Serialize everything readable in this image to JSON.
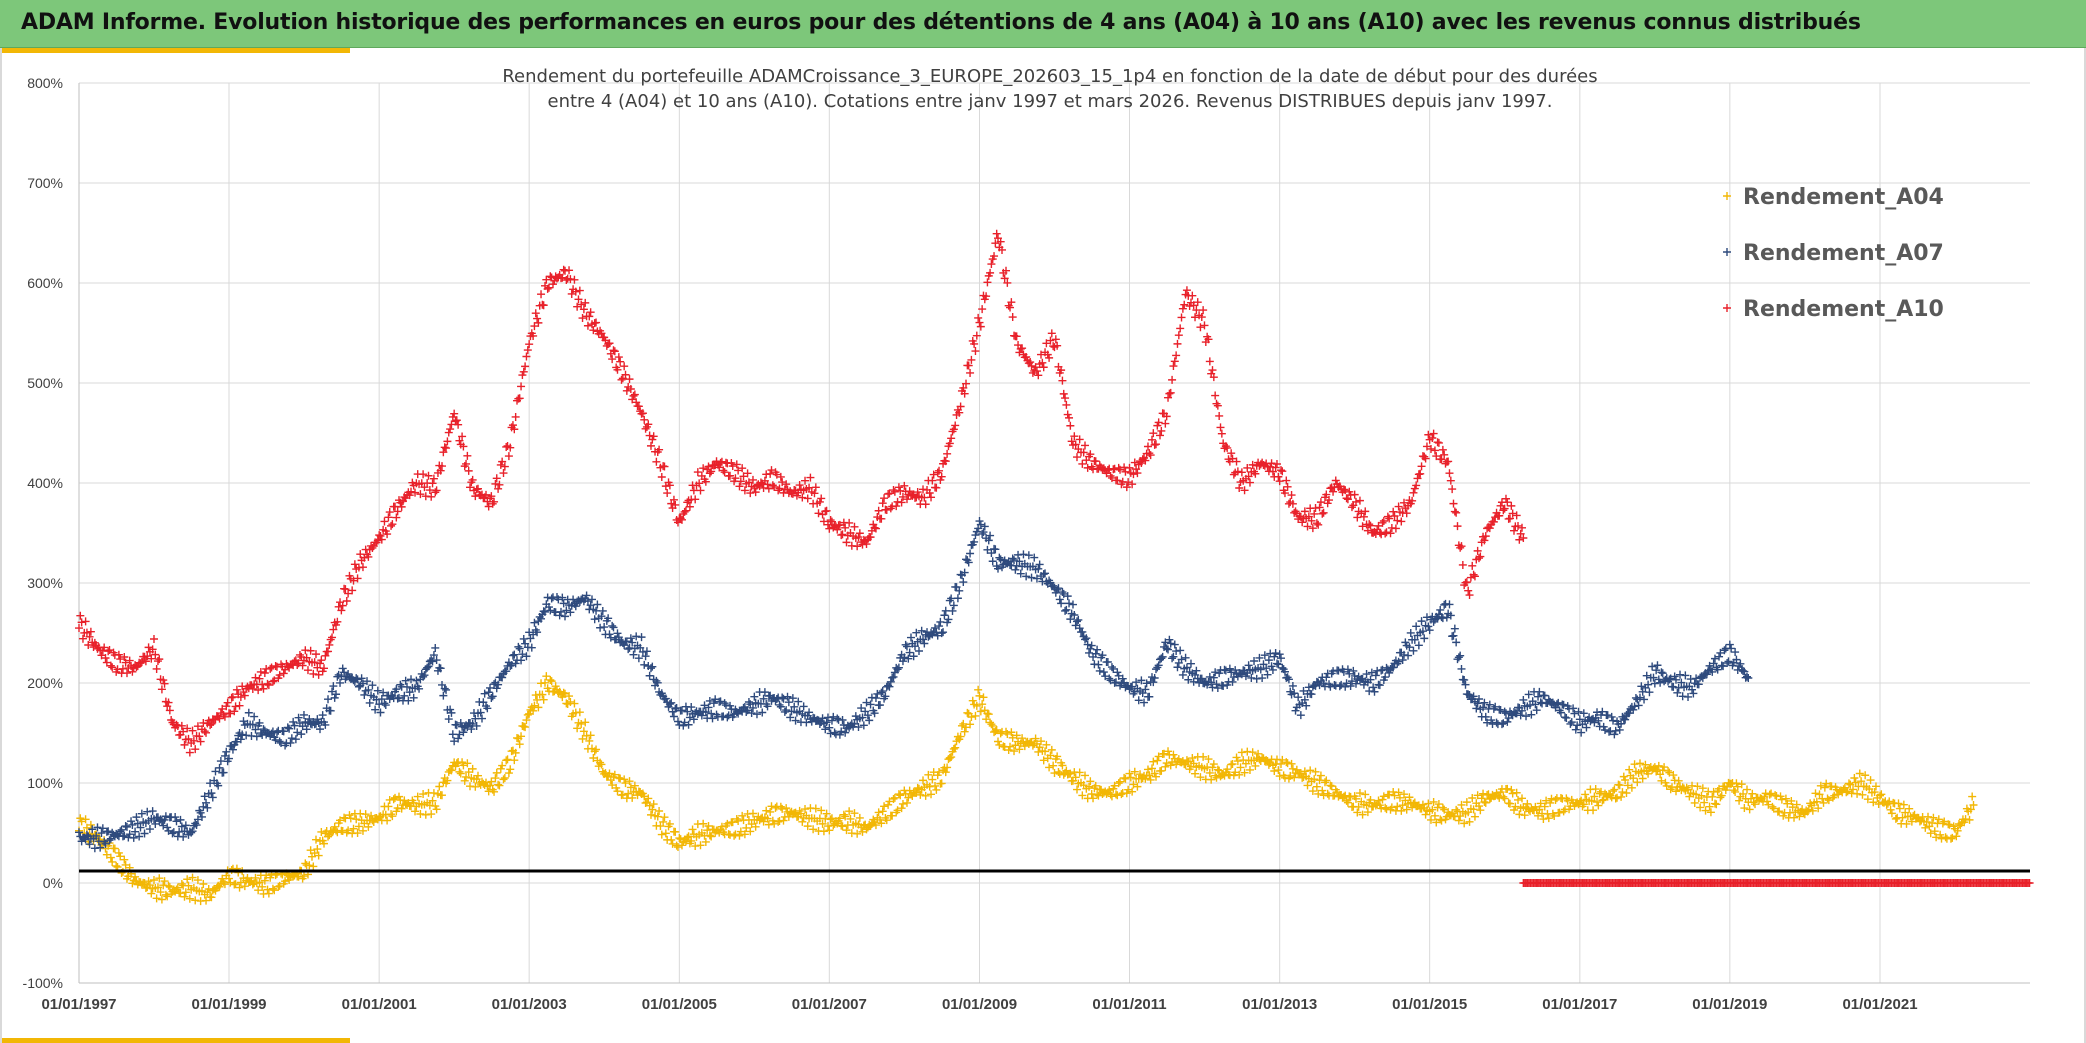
{
  "header": {
    "title": "ADAM Informe. Evolution historique des performances en euros pour des détentions de 4 ans (A04) à 10 ans (A10) avec les revenus connus distribués",
    "background": "#7dc77a",
    "accent": "#f2b705"
  },
  "chart_data": {
    "type": "scatter",
    "marker": "plus",
    "title_lines": [
      "Rendement du portefeuille ADAMCroissance_3_EUROPE_202603_15_1p4  en fonction de la date de début pour des durées",
      "entre 4 (A04) et 10 ans (A10). Cotations entre janv 1997 et mars 2026. Revenus DISTRIBUES depuis janv 1997."
    ],
    "xlabel": "",
    "ylabel": "",
    "x_ticks": [
      "01/01/1997",
      "01/01/1999",
      "01/01/2001",
      "01/01/2003",
      "01/01/2005",
      "01/01/2007",
      "01/01/2009",
      "01/01/2011",
      "01/01/2013",
      "01/01/2015",
      "01/01/2017",
      "01/01/2019",
      "01/01/2021"
    ],
    "xlim": [
      "1997-01-01",
      "2023-01-01"
    ],
    "y_ticks": [
      "-100%",
      "0%",
      "100%",
      "200%",
      "300%",
      "400%",
      "500%",
      "600%",
      "700%",
      "800%"
    ],
    "ylim": [
      -100,
      800
    ],
    "grid": true,
    "legend_position": "top-right",
    "reference_line": {
      "y": 12,
      "color": "#000000"
    },
    "series": [
      {
        "name": "Rendement_A04",
        "color": "#f2b705",
        "points": [
          [
            "1997-01-01",
            58
          ],
          [
            "1997-04-01",
            45
          ],
          [
            "1997-07-01",
            25
          ],
          [
            "1997-10-01",
            2
          ],
          [
            "1998-01-01",
            -5
          ],
          [
            "1998-04-01",
            -8
          ],
          [
            "1998-07-01",
            -5
          ],
          [
            "1998-10-01",
            -12
          ],
          [
            "1999-01-01",
            8
          ],
          [
            "1999-04-01",
            2
          ],
          [
            "1999-07-01",
            -2
          ],
          [
            "1999-10-01",
            5
          ],
          [
            "2000-01-01",
            10
          ],
          [
            "2000-04-01",
            45
          ],
          [
            "2000-07-01",
            58
          ],
          [
            "2000-10-01",
            60
          ],
          [
            "2001-01-01",
            65
          ],
          [
            "2001-04-01",
            80
          ],
          [
            "2001-07-01",
            78
          ],
          [
            "2001-10-01",
            80
          ],
          [
            "2002-01-01",
            120
          ],
          [
            "2002-04-01",
            105
          ],
          [
            "2002-07-01",
            95
          ],
          [
            "2002-10-01",
            120
          ],
          [
            "2003-01-01",
            170
          ],
          [
            "2003-04-01",
            200
          ],
          [
            "2003-07-01",
            185
          ],
          [
            "2003-10-01",
            150
          ],
          [
            "2004-01-01",
            110
          ],
          [
            "2004-04-01",
            95
          ],
          [
            "2004-07-01",
            90
          ],
          [
            "2004-10-01",
            60
          ],
          [
            "2005-01-01",
            40
          ],
          [
            "2005-04-01",
            48
          ],
          [
            "2005-07-01",
            52
          ],
          [
            "2005-10-01",
            55
          ],
          [
            "2006-01-01",
            62
          ],
          [
            "2006-04-01",
            68
          ],
          [
            "2006-07-01",
            70
          ],
          [
            "2006-10-01",
            65
          ],
          [
            "2007-01-01",
            60
          ],
          [
            "2007-04-01",
            62
          ],
          [
            "2007-07-01",
            55
          ],
          [
            "2007-10-01",
            70
          ],
          [
            "2008-01-01",
            85
          ],
          [
            "2008-04-01",
            95
          ],
          [
            "2008-07-01",
            105
          ],
          [
            "2008-10-01",
            150
          ],
          [
            "2009-01-01",
            185
          ],
          [
            "2009-04-01",
            145
          ],
          [
            "2009-07-01",
            140
          ],
          [
            "2009-10-01",
            140
          ],
          [
            "2010-01-01",
            120
          ],
          [
            "2010-04-01",
            105
          ],
          [
            "2010-07-01",
            92
          ],
          [
            "2010-10-01",
            90
          ],
          [
            "2011-01-01",
            100
          ],
          [
            "2011-04-01",
            108
          ],
          [
            "2011-07-01",
            125
          ],
          [
            "2011-10-01",
            120
          ],
          [
            "2012-01-01",
            115
          ],
          [
            "2012-04-01",
            108
          ],
          [
            "2012-07-01",
            120
          ],
          [
            "2012-10-01",
            125
          ],
          [
            "2013-01-01",
            115
          ],
          [
            "2013-04-01",
            110
          ],
          [
            "2013-07-01",
            100
          ],
          [
            "2013-10-01",
            90
          ],
          [
            "2014-01-01",
            80
          ],
          [
            "2014-04-01",
            78
          ],
          [
            "2014-07-01",
            82
          ],
          [
            "2014-10-01",
            80
          ],
          [
            "2015-01-01",
            72
          ],
          [
            "2015-04-01",
            68
          ],
          [
            "2015-07-01",
            70
          ],
          [
            "2015-10-01",
            85
          ],
          [
            "2016-01-01",
            90
          ],
          [
            "2016-04-01",
            75
          ],
          [
            "2016-07-01",
            72
          ],
          [
            "2016-10-01",
            78
          ],
          [
            "2017-01-01",
            80
          ],
          [
            "2017-04-01",
            85
          ],
          [
            "2017-07-01",
            90
          ],
          [
            "2017-10-01",
            110
          ],
          [
            "2018-01-01",
            115
          ],
          [
            "2018-04-01",
            100
          ],
          [
            "2018-07-01",
            90
          ],
          [
            "2018-10-01",
            80
          ],
          [
            "2019-01-01",
            100
          ],
          [
            "2019-04-01",
            82
          ],
          [
            "2019-07-01",
            85
          ],
          [
            "2019-10-01",
            75
          ],
          [
            "2020-01-01",
            70
          ],
          [
            "2020-04-01",
            90
          ],
          [
            "2020-07-01",
            92
          ],
          [
            "2020-10-01",
            100
          ],
          [
            "2021-01-01",
            85
          ],
          [
            "2021-04-01",
            70
          ],
          [
            "2021-07-01",
            65
          ],
          [
            "2021-10-01",
            55
          ],
          [
            "2022-01-01",
            50
          ],
          [
            "2022-04-01",
            78
          ]
        ]
      },
      {
        "name": "Rendement_A07",
        "color": "#2e4a7d",
        "points": [
          [
            "1997-01-01",
            45
          ],
          [
            "1997-04-01",
            45
          ],
          [
            "1997-07-01",
            48
          ],
          [
            "1997-10-01",
            55
          ],
          [
            "1998-01-01",
            65
          ],
          [
            "1998-04-01",
            58
          ],
          [
            "1998-07-01",
            50
          ],
          [
            "1998-10-01",
            90
          ],
          [
            "1999-01-01",
            130
          ],
          [
            "1999-04-01",
            160
          ],
          [
            "1999-07-01",
            150
          ],
          [
            "1999-10-01",
            145
          ],
          [
            "2000-01-01",
            160
          ],
          [
            "2000-04-01",
            160
          ],
          [
            "2000-07-01",
            210
          ],
          [
            "2000-10-01",
            200
          ],
          [
            "2001-01-01",
            180
          ],
          [
            "2001-04-01",
            190
          ],
          [
            "2001-07-01",
            195
          ],
          [
            "2001-10-01",
            230
          ],
          [
            "2002-01-01",
            150
          ],
          [
            "2002-04-01",
            160
          ],
          [
            "2002-07-01",
            190
          ],
          [
            "2002-10-01",
            220
          ],
          [
            "2003-01-01",
            240
          ],
          [
            "2003-04-01",
            280
          ],
          [
            "2003-07-01",
            275
          ],
          [
            "2003-10-01",
            285
          ],
          [
            "2004-01-01",
            260
          ],
          [
            "2004-04-01",
            240
          ],
          [
            "2004-07-01",
            235
          ],
          [
            "2004-10-01",
            190
          ],
          [
            "2005-01-01",
            165
          ],
          [
            "2005-04-01",
            170
          ],
          [
            "2005-07-01",
            175
          ],
          [
            "2005-10-01",
            170
          ],
          [
            "2006-01-01",
            178
          ],
          [
            "2006-04-01",
            185
          ],
          [
            "2006-07-01",
            175
          ],
          [
            "2006-10-01",
            165
          ],
          [
            "2007-01-01",
            158
          ],
          [
            "2007-04-01",
            155
          ],
          [
            "2007-07-01",
            170
          ],
          [
            "2007-10-01",
            190
          ],
          [
            "2008-01-01",
            230
          ],
          [
            "2008-04-01",
            245
          ],
          [
            "2008-07-01",
            255
          ],
          [
            "2008-10-01",
            300
          ],
          [
            "2009-01-01",
            360
          ],
          [
            "2009-04-01",
            320
          ],
          [
            "2009-07-01",
            320
          ],
          [
            "2009-10-01",
            315
          ],
          [
            "2010-01-01",
            295
          ],
          [
            "2010-04-01",
            270
          ],
          [
            "2010-07-01",
            230
          ],
          [
            "2010-10-01",
            210
          ],
          [
            "2011-01-01",
            195
          ],
          [
            "2011-04-01",
            190
          ],
          [
            "2011-07-01",
            240
          ],
          [
            "2011-10-01",
            215
          ],
          [
            "2012-01-01",
            200
          ],
          [
            "2012-04-01",
            205
          ],
          [
            "2012-07-01",
            210
          ],
          [
            "2012-10-01",
            215
          ],
          [
            "2013-01-01",
            225
          ],
          [
            "2013-04-01",
            175
          ],
          [
            "2013-07-01",
            200
          ],
          [
            "2013-10-01",
            205
          ],
          [
            "2014-01-01",
            205
          ],
          [
            "2014-04-01",
            200
          ],
          [
            "2014-07-01",
            215
          ],
          [
            "2014-10-01",
            240
          ],
          [
            "2015-01-01",
            260
          ],
          [
            "2015-04-01",
            275
          ],
          [
            "2015-07-01",
            190
          ],
          [
            "2015-10-01",
            170
          ],
          [
            "2016-01-01",
            165
          ],
          [
            "2016-04-01",
            175
          ],
          [
            "2016-07-01",
            185
          ],
          [
            "2016-10-01",
            175
          ],
          [
            "2017-01-01",
            160
          ],
          [
            "2017-04-01",
            165
          ],
          [
            "2017-07-01",
            155
          ],
          [
            "2017-10-01",
            180
          ],
          [
            "2018-01-01",
            210
          ],
          [
            "2018-04-01",
            200
          ],
          [
            "2018-07-01",
            195
          ],
          [
            "2018-10-01",
            215
          ],
          [
            "2019-01-01",
            230
          ],
          [
            "2019-04-01",
            205
          ]
        ]
      },
      {
        "name": "Rendement_A10",
        "color": "#e8212a",
        "points": [
          [
            "1997-01-01",
            260
          ],
          [
            "1997-04-01",
            235
          ],
          [
            "1997-07-01",
            220
          ],
          [
            "1997-10-01",
            215
          ],
          [
            "1998-01-01",
            235
          ],
          [
            "1998-04-01",
            160
          ],
          [
            "1998-07-01",
            140
          ],
          [
            "1998-10-01",
            160
          ],
          [
            "1999-01-01",
            175
          ],
          [
            "1999-04-01",
            195
          ],
          [
            "1999-07-01",
            205
          ],
          [
            "1999-10-01",
            215
          ],
          [
            "2000-01-01",
            225
          ],
          [
            "2000-04-01",
            215
          ],
          [
            "2000-07-01",
            280
          ],
          [
            "2000-10-01",
            320
          ],
          [
            "2001-01-01",
            345
          ],
          [
            "2001-04-01",
            375
          ],
          [
            "2001-07-01",
            400
          ],
          [
            "2001-10-01",
            395
          ],
          [
            "2002-01-01",
            470
          ],
          [
            "2002-04-01",
            395
          ],
          [
            "2002-07-01",
            380
          ],
          [
            "2002-10-01",
            440
          ],
          [
            "2003-01-01",
            540
          ],
          [
            "2003-04-01",
            600
          ],
          [
            "2003-07-01",
            610
          ],
          [
            "2003-10-01",
            570
          ],
          [
            "2004-01-01",
            545
          ],
          [
            "2004-04-01",
            510
          ],
          [
            "2004-07-01",
            470
          ],
          [
            "2004-10-01",
            420
          ],
          [
            "2005-01-01",
            360
          ],
          [
            "2005-04-01",
            400
          ],
          [
            "2005-07-01",
            420
          ],
          [
            "2005-10-01",
            410
          ],
          [
            "2006-01-01",
            395
          ],
          [
            "2006-04-01",
            405
          ],
          [
            "2006-07-01",
            390
          ],
          [
            "2006-10-01",
            395
          ],
          [
            "2007-01-01",
            360
          ],
          [
            "2007-04-01",
            350
          ],
          [
            "2007-07-01",
            340
          ],
          [
            "2007-10-01",
            380
          ],
          [
            "2008-01-01",
            390
          ],
          [
            "2008-04-01",
            385
          ],
          [
            "2008-07-01",
            410
          ],
          [
            "2008-10-01",
            480
          ],
          [
            "2009-01-01",
            560
          ],
          [
            "2009-04-01",
            650
          ],
          [
            "2009-07-01",
            540
          ],
          [
            "2009-10-01",
            510
          ],
          [
            "2010-01-01",
            545
          ],
          [
            "2010-04-01",
            440
          ],
          [
            "2010-07-01",
            420
          ],
          [
            "2010-10-01",
            410
          ],
          [
            "2011-01-01",
            405
          ],
          [
            "2011-04-01",
            430
          ],
          [
            "2011-07-01",
            470
          ],
          [
            "2011-10-01",
            590
          ],
          [
            "2012-01-01",
            560
          ],
          [
            "2012-04-01",
            440
          ],
          [
            "2012-07-01",
            400
          ],
          [
            "2012-10-01",
            420
          ],
          [
            "2013-01-01",
            410
          ],
          [
            "2013-04-01",
            365
          ],
          [
            "2013-07-01",
            365
          ],
          [
            "2013-10-01",
            400
          ],
          [
            "2014-01-01",
            380
          ],
          [
            "2014-04-01",
            350
          ],
          [
            "2014-07-01",
            360
          ],
          [
            "2014-10-01",
            380
          ],
          [
            "2015-01-01",
            445
          ],
          [
            "2015-04-01",
            420
          ],
          [
            "2015-07-01",
            290
          ],
          [
            "2015-10-01",
            350
          ],
          [
            "2016-01-01",
            380
          ],
          [
            "2016-04-01",
            345
          ]
        ]
      },
      {
        "name": "",
        "color": "#e8212a",
        "points": [
          [
            "2016-04-01",
            0
          ],
          [
            "2023-01-01",
            0
          ]
        ]
      }
    ]
  }
}
